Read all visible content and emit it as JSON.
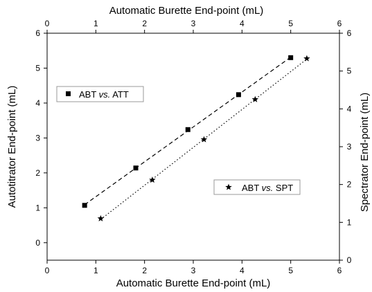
{
  "chart_data": {
    "type": "scatter",
    "axes": {
      "bottom": {
        "label": "Automatic Burette End-point (mL)",
        "range": [
          0,
          6
        ],
        "ticks": [
          0,
          1,
          2,
          3,
          4,
          5,
          6
        ]
      },
      "top": {
        "label": "Automatic Burette End-point (mL)",
        "range": [
          0,
          6
        ],
        "ticks": [
          0,
          1,
          2,
          3,
          4,
          5,
          6
        ]
      },
      "left": {
        "label": "Autotitrator End-point (mL)",
        "range": [
          -0.5,
          6
        ],
        "ticks": [
          0,
          1,
          2,
          3,
          4,
          5,
          6
        ]
      },
      "right": {
        "label": "Spectrator End-point (mL)",
        "range": [
          0,
          6
        ],
        "ticks": [
          0,
          1,
          2,
          3,
          4,
          5,
          6
        ]
      }
    },
    "series": [
      {
        "name": "ABT vs. ATT",
        "marker": "square",
        "line": "dashed",
        "y_axis": "left",
        "color": "#000000",
        "x": [
          0.77,
          1.82,
          2.89,
          3.93,
          5.0
        ],
        "y": [
          1.07,
          2.14,
          3.24,
          4.24,
          5.3
        ]
      },
      {
        "name": "ABT vs. SPT",
        "marker": "star",
        "line": "dotted",
        "y_axis": "right",
        "color": "#000000",
        "x": [
          1.1,
          2.16,
          3.22,
          4.27,
          5.33
        ],
        "y": [
          1.1,
          2.12,
          3.19,
          4.25,
          5.33
        ]
      }
    ],
    "legend": [
      {
        "prefix": "ABT ",
        "italic": "vs.",
        "suffix": " ATT",
        "marker": "square"
      },
      {
        "prefix": "ABT ",
        "italic": "vs.",
        "suffix": " SPT",
        "marker": "star"
      }
    ],
    "grid": false
  }
}
